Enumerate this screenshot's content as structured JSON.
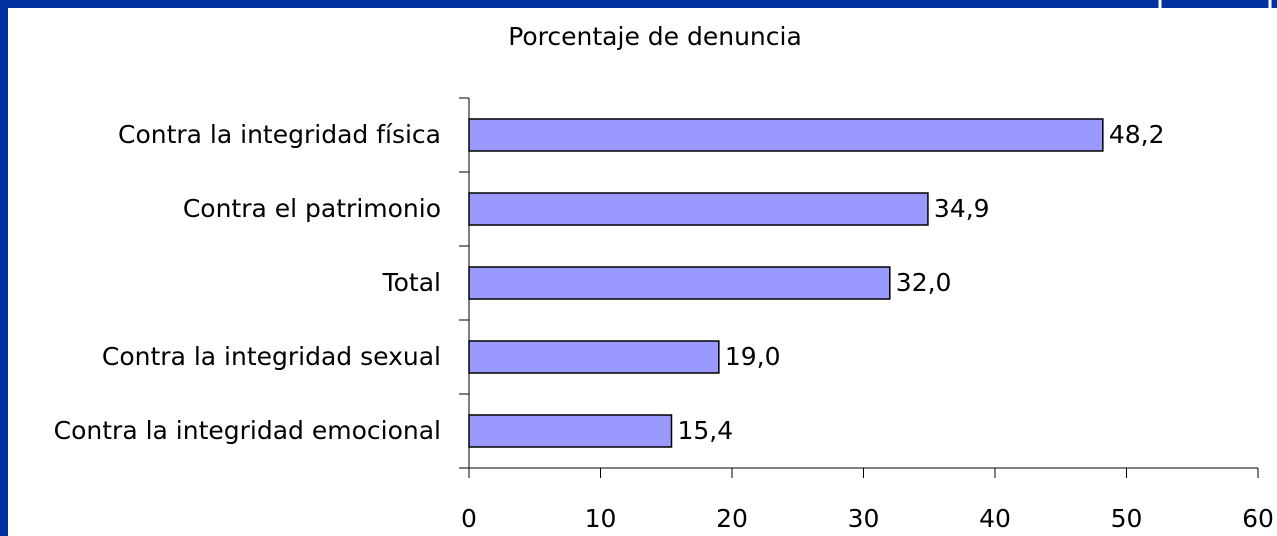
{
  "chart_data": {
    "type": "bar",
    "orientation": "horizontal",
    "title": "Porcentaje de denuncia",
    "categories": [
      "Contra la integridad física",
      "Contra el patrimonio",
      "Total",
      "Contra la integridad sexual",
      "Contra la integridad emocional"
    ],
    "values": [
      48.2,
      34.9,
      32.0,
      19.0,
      15.4
    ],
    "value_labels": [
      "48,2",
      "34,9",
      "32,0",
      "19,0",
      "15,4"
    ],
    "color": "#9999ff",
    "xlim": [
      0,
      60
    ],
    "xticks": [
      0,
      10,
      20,
      30,
      40,
      50,
      60
    ]
  }
}
